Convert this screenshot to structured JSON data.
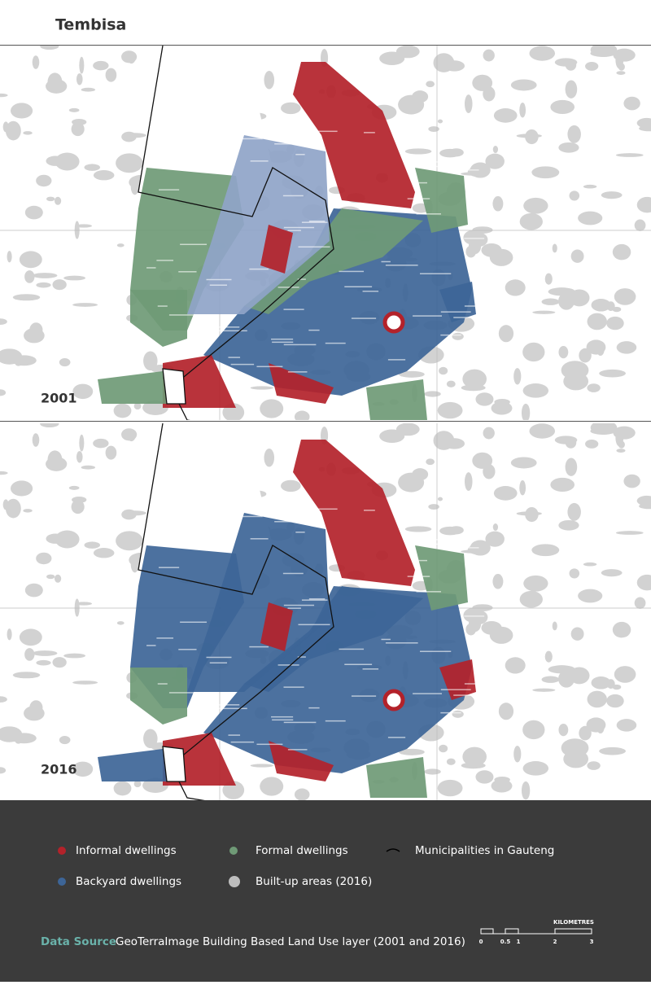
{
  "header": {
    "title": "Tembisa"
  },
  "maps": [
    {
      "year": "2001"
    },
    {
      "year": "2016"
    }
  ],
  "legend": [
    "Informal dwellings",
    "Formal dwellings",
    "Municipalities in Gauteng",
    "Backyard dwellings",
    "Built-up areas (2016)"
  ],
  "source": {
    "label": "Data Source",
    "text": "GeoTerraImage Building Based Land Use layer (2001 and 2016)"
  },
  "scale": {
    "unit": "KILOMETRES",
    "labels": [
      "0",
      "0.5",
      "1",
      "2",
      "3"
    ]
  }
}
